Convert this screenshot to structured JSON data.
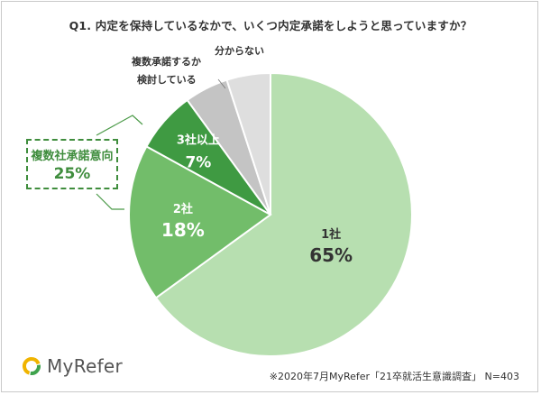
{
  "title": "Q1. 内定を保持しているなかで、いくつ内定承諾をしようと思っていますか？",
  "chart_data": {
    "type": "pie",
    "slices": [
      {
        "label": "1社",
        "value": 65,
        "value_text": "65%",
        "color": "#b7dfb0"
      },
      {
        "label": "2社",
        "value": 18,
        "value_text": "18%",
        "color": "#72bd6a"
      },
      {
        "label": "3社以上",
        "value": 7,
        "value_text": "7%",
        "color": "#3f9a42"
      },
      {
        "label": "複数承諾するか検討している",
        "value": 5,
        "value_text": "",
        "color": "#c4c4c4"
      },
      {
        "label": "分からない",
        "value": 5,
        "value_text": "",
        "color": "#dedede"
      }
    ],
    "group_annotation": {
      "label": "複数社承諾意向",
      "value_text": "25%",
      "color": "#3f8d3d"
    }
  },
  "outside_labels": {
    "consider_line1": "複数承諾するか",
    "consider_line2": "検討している",
    "unknown": "分からない"
  },
  "logo": {
    "text": "MyRefer",
    "ring_colors": [
      "#f0b400",
      "#3fa34d"
    ]
  },
  "footnote": "※2020年7月MyRefer「21卒就活生意識調査」 N=403"
}
